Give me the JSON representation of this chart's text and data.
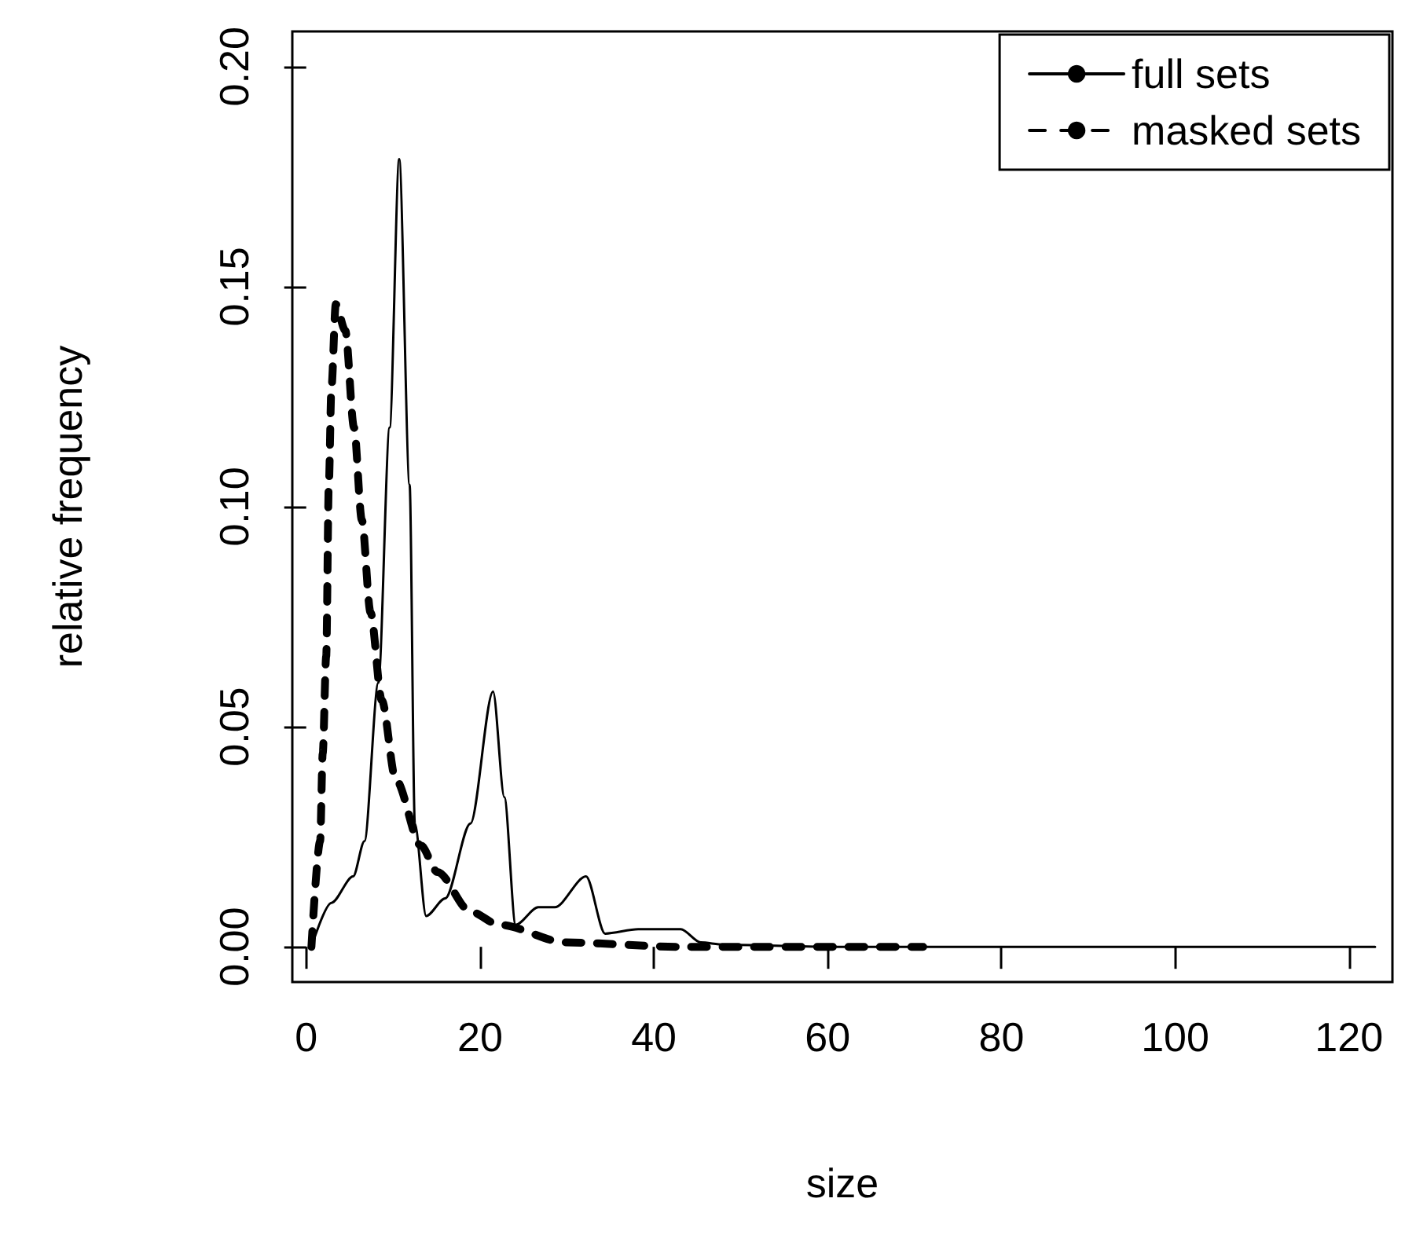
{
  "chart_data": {
    "type": "line",
    "xlabel": "size",
    "ylabel": "relative frequency",
    "xlim": [
      -1.6,
      125
    ],
    "xticks": [
      0,
      20,
      40,
      60,
      80,
      100,
      120
    ],
    "ylim": [
      -0.008,
      0.208
    ],
    "yticks": [
      {
        "value": 0,
        "label": "0.00"
      },
      {
        "value": 0.05,
        "label": "0.05"
      },
      {
        "value": 0.1,
        "label": "0.10"
      },
      {
        "value": 0.15,
        "label": "0.15"
      },
      {
        "value": 0.2,
        "label": "0.20"
      }
    ],
    "grid": false,
    "legend": "top right",
    "marker": "none",
    "series": [
      {
        "name": "full sets",
        "color": "#000000",
        "line_style": "solid",
        "x": [
          0.6,
          2.9,
          5.4,
          6.7,
          8.3,
          9.6,
          10.7,
          11.9,
          12.5,
          13.8,
          16.0,
          18.9,
          21.5,
          22.8,
          24.1,
          26.7,
          28.6,
          32.2,
          34.4,
          38.2,
          43.1,
          45.4,
          48,
          60,
          80,
          100,
          123
        ],
        "values": [
          0.0,
          0.01,
          0.016,
          0.024,
          0.06,
          0.118,
          0.179,
          0.105,
          0.028,
          0.007,
          0.011,
          0.028,
          0.058,
          0.034,
          0.005,
          0.009,
          0.009,
          0.016,
          0.003,
          0.004,
          0.004,
          0.001,
          0.0005,
          0,
          0,
          0,
          0
        ]
      },
      {
        "name": "masked sets",
        "color": "#000000",
        "line_style": "dashed",
        "x": [
          0.6,
          1.6,
          1.9,
          2.3,
          2.6,
          2.9,
          3.4,
          4.5,
          5.5,
          6.4,
          7.4,
          8.7,
          10.3,
          13.2,
          15.1,
          18.9,
          22.2,
          29.9,
          43,
          71
        ],
        "values": [
          0.0,
          0.024,
          0.044,
          0.066,
          0.105,
          0.127,
          0.146,
          0.14,
          0.118,
          0.097,
          0.076,
          0.056,
          0.038,
          0.023,
          0.017,
          0.008,
          0.005,
          0.001,
          0,
          0
        ]
      }
    ]
  }
}
